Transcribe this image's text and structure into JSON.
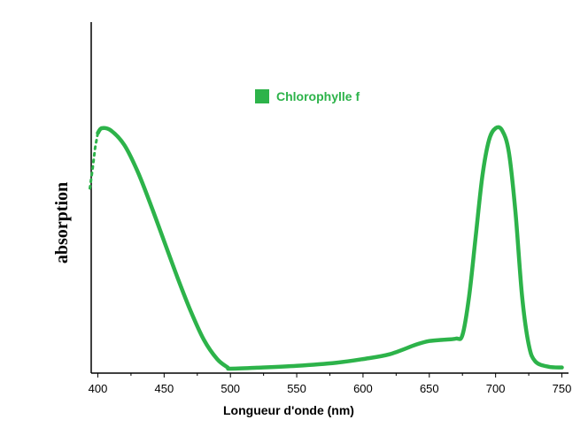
{
  "chart_data": {
    "type": "line",
    "title": "",
    "xlabel": "Longueur d'onde (nm)",
    "ylabel": "absorption",
    "xlim": [
      395,
      755
    ],
    "ylim": [
      0,
      1.0
    ],
    "xticks": [
      400,
      450,
      500,
      550,
      600,
      650,
      700,
      750
    ],
    "grid": false,
    "legend_position": "top-center",
    "series": [
      {
        "name": "Chlorophylle f",
        "color": "#2db34a",
        "points": [
          [
            400,
            0.98
          ],
          [
            403,
            1.0
          ],
          [
            410,
            0.99
          ],
          [
            420,
            0.93
          ],
          [
            430,
            0.82
          ],
          [
            440,
            0.68
          ],
          [
            450,
            0.53
          ],
          [
            460,
            0.38
          ],
          [
            470,
            0.24
          ],
          [
            480,
            0.12
          ],
          [
            490,
            0.04
          ],
          [
            498,
            0.005
          ],
          [
            500,
            0.0
          ],
          [
            520,
            0.004
          ],
          [
            550,
            0.012
          ],
          [
            580,
            0.025
          ],
          [
            600,
            0.04
          ],
          [
            620,
            0.06
          ],
          [
            640,
            0.1
          ],
          [
            650,
            0.115
          ],
          [
            660,
            0.12
          ],
          [
            670,
            0.125
          ],
          [
            675,
            0.14
          ],
          [
            680,
            0.3
          ],
          [
            685,
            0.55
          ],
          [
            690,
            0.8
          ],
          [
            695,
            0.95
          ],
          [
            700,
            1.0
          ],
          [
            705,
            0.99
          ],
          [
            710,
            0.9
          ],
          [
            715,
            0.65
          ],
          [
            720,
            0.3
          ],
          [
            725,
            0.1
          ],
          [
            730,
            0.03
          ],
          [
            740,
            0.008
          ],
          [
            750,
            0.005
          ]
        ],
        "dotted_points": [
          [
            394,
            0.75
          ],
          [
            396,
            0.83
          ],
          [
            398,
            0.92
          ],
          [
            400,
            0.98
          ]
        ]
      }
    ]
  }
}
